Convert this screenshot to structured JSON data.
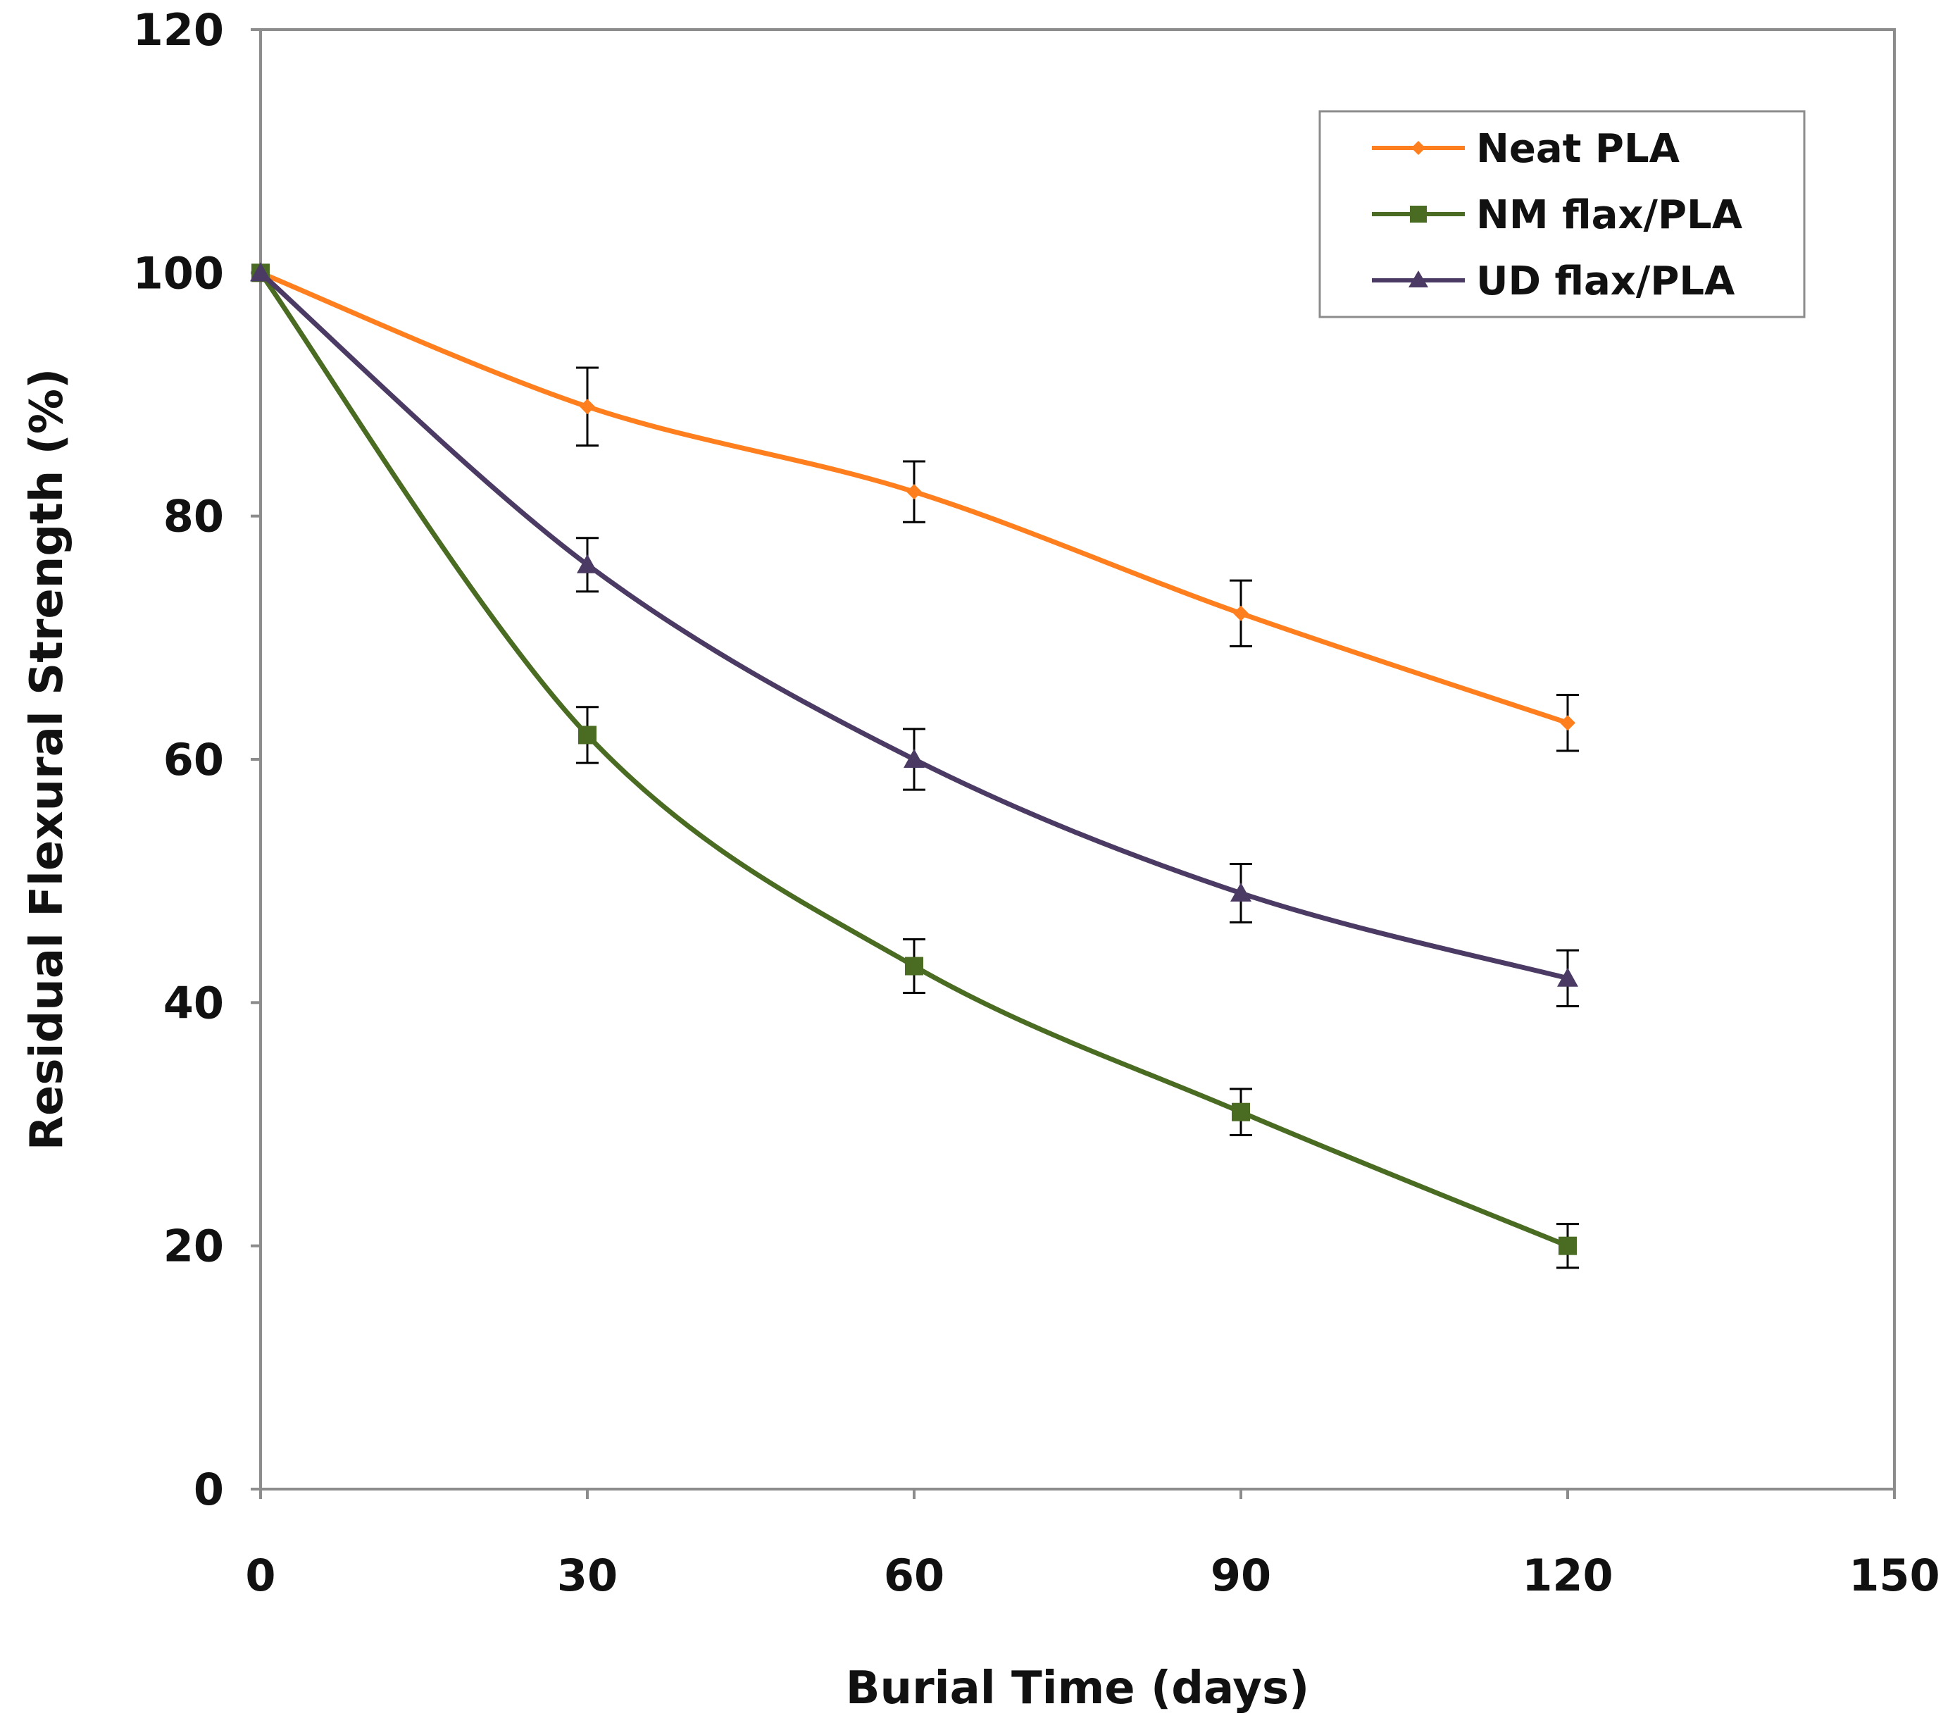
{
  "chart_data": {
    "type": "line",
    "title": "",
    "xlabel": "Burial Time (days)",
    "ylabel": "Residual Flexural Strength (%)",
    "xlim": [
      0,
      150
    ],
    "ylim": [
      0,
      120
    ],
    "xticks": [
      0,
      30,
      60,
      90,
      120,
      150
    ],
    "yticks": [
      0,
      20,
      40,
      60,
      80,
      100,
      120
    ],
    "grid": false,
    "legend_position": "top-right",
    "x": [
      0,
      30,
      60,
      90,
      120
    ],
    "series": [
      {
        "name": "Neat PLA",
        "color": "#FF7F1E",
        "marker": "diamond",
        "values": [
          100,
          89,
          82,
          72,
          63
        ],
        "errors": [
          0,
          3.2,
          2.5,
          2.7,
          2.3
        ]
      },
      {
        "name": "NM flax/PLA",
        "color": "#4A6B22",
        "marker": "square",
        "values": [
          100,
          62,
          43,
          31,
          20
        ],
        "errors": [
          0,
          2.3,
          2.2,
          1.9,
          1.8
        ]
      },
      {
        "name": "UD flax/PLA",
        "color": "#4B3A63",
        "marker": "triangle",
        "values": [
          100,
          76,
          60,
          49,
          42
        ],
        "errors": [
          0,
          2.2,
          2.5,
          2.4,
          2.3
        ]
      }
    ]
  }
}
